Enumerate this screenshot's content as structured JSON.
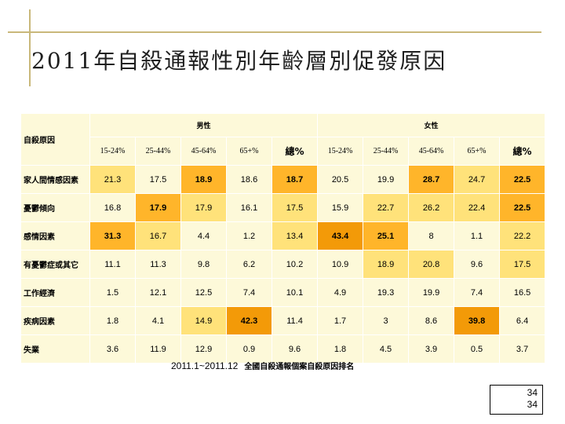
{
  "title": "2011年自殺通報性別年齡層別促發原因",
  "table": {
    "corner_label": "自殺原因",
    "group_male": "男性",
    "group_female": "女性",
    "columns": [
      "15-24%",
      "25-44%",
      "45-64%",
      "65+%",
      "總%",
      "15-24%",
      "25-44%",
      "45-64%",
      "65+%",
      "總%"
    ],
    "rows": [
      {
        "label": "家人間情感因素",
        "values": [
          "21.3",
          "17.5",
          "18.9",
          "18.6",
          "18.7",
          "20.5",
          "19.9",
          "28.7",
          "24.7",
          "22.5"
        ]
      },
      {
        "label": "憂鬱傾向",
        "values": [
          "16.8",
          "17.9",
          "17.9",
          "16.1",
          "17.5",
          "15.9",
          "22.7",
          "26.2",
          "22.4",
          "22.5"
        ]
      },
      {
        "label": "感情因素",
        "values": [
          "31.3",
          "16.7",
          "4.4",
          "1.2",
          "13.4",
          "43.4",
          "25.1",
          "8",
          "1.1",
          "22.2"
        ]
      },
      {
        "label": "有憂鬱症或其它",
        "values": [
          "11.1",
          "11.3",
          "9.8",
          "6.2",
          "10.2",
          "10.9",
          "18.9",
          "20.8",
          "9.6",
          "17.5"
        ]
      },
      {
        "label": "工作經濟",
        "values": [
          "1.5",
          "12.1",
          "12.5",
          "7.4",
          "10.1",
          "4.9",
          "19.3",
          "19.9",
          "7.4",
          "16.5"
        ]
      },
      {
        "label": "疾病因素",
        "values": [
          "1.8",
          "4.1",
          "14.9",
          "42.3",
          "11.4",
          "1.7",
          "3",
          "8.6",
          "39.8",
          "6.4"
        ]
      },
      {
        "label": "失業",
        "values": [
          "3.6",
          "11.9",
          "12.9",
          "0.9",
          "9.6",
          "1.8",
          "4.5",
          "3.9",
          "0.5",
          "3.7"
        ]
      }
    ],
    "highlight_levels": [
      [
        1,
        0,
        2,
        0,
        2,
        0,
        0,
        2,
        1,
        2
      ],
      [
        0,
        2,
        1,
        0,
        1,
        0,
        1,
        1,
        1,
        2
      ],
      [
        2,
        1,
        0,
        0,
        1,
        3,
        2,
        0,
        0,
        1
      ],
      [
        0,
        0,
        0,
        0,
        0,
        0,
        1,
        1,
        0,
        1
      ],
      [
        0,
        0,
        0,
        0,
        0,
        0,
        0,
        0,
        0,
        0
      ],
      [
        0,
        0,
        1,
        3,
        0,
        0,
        0,
        0,
        3,
        0
      ],
      [
        0,
        0,
        0,
        0,
        0,
        0,
        0,
        0,
        0,
        0
      ]
    ],
    "bold_cells": [
      [
        0,
        0,
        1,
        0,
        1,
        0,
        0,
        1,
        0,
        1
      ],
      [
        0,
        1,
        0,
        0,
        0,
        0,
        0,
        0,
        0,
        1
      ],
      [
        1,
        0,
        0,
        0,
        0,
        1,
        1,
        0,
        0,
        0
      ],
      [
        0,
        0,
        0,
        0,
        0,
        0,
        0,
        0,
        0,
        0
      ],
      [
        0,
        0,
        0,
        0,
        0,
        0,
        0,
        0,
        0,
        0
      ],
      [
        0,
        0,
        0,
        1,
        0,
        0,
        0,
        0,
        1,
        0
      ],
      [
        0,
        0,
        0,
        0,
        0,
        0,
        0,
        0,
        0,
        0
      ]
    ]
  },
  "footnote": {
    "period": "2011.1~2011.12",
    "text": "全國自殺通報個案自殺原因排名"
  },
  "page_number": "34",
  "page_number_repeat": "34",
  "colors": {
    "header_bg": "#fdf9d9",
    "level1": "#ffe27a",
    "level2": "#ffb52a",
    "level3": "#f39a08",
    "accent_line": "#c9b87a"
  }
}
